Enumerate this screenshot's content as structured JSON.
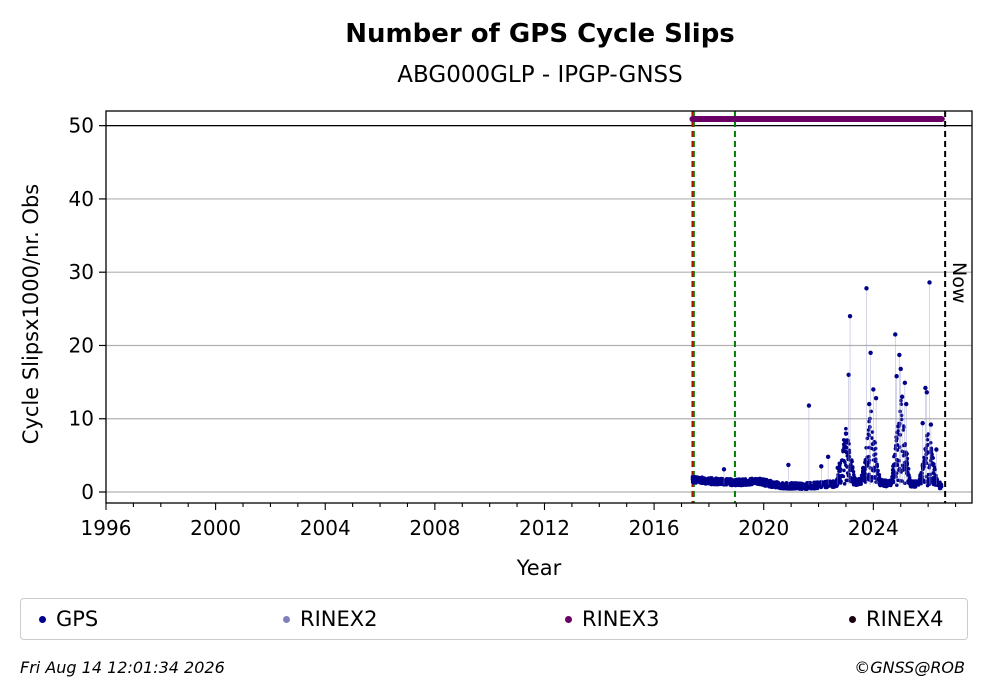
{
  "chart_data": {
    "type": "scatter",
    "title": "Number of GPS Cycle Slips",
    "subtitle": "ABG000GLP - IPGP-GNSS",
    "xlabel": "Year",
    "ylabel": "Cycle Slipsx1000/nr. Obs",
    "xlim": [
      1996,
      2027.6
    ],
    "ylim": [
      -1.5,
      52
    ],
    "x_ticks": [
      1996,
      2000,
      2004,
      2008,
      2012,
      2016,
      2020,
      2024
    ],
    "x_tick_labels": [
      "1996",
      "2000",
      "2004",
      "2008",
      "2012",
      "2016",
      "2020",
      "2024"
    ],
    "y_ticks": [
      0,
      10,
      20,
      30,
      40,
      50
    ],
    "y_tick_labels": [
      "0",
      "10",
      "20",
      "30",
      "40",
      "50"
    ],
    "grid": "y",
    "legend_placement": "bottom",
    "reference_line_y": 50,
    "vertical_lines": [
      {
        "x": 2017.4,
        "color": "#cc0000",
        "style": "dashed"
      },
      {
        "x": 2017.45,
        "color": "#008000",
        "style": "dashed"
      },
      {
        "x": 2018.95,
        "color": "#008000",
        "style": "dashed"
      },
      {
        "x": 2026.62,
        "color": "#000000",
        "style": "dashed"
      }
    ],
    "now_label": "Now",
    "rinex3_bar": {
      "x_start": 2017.4,
      "x_end": 2026.5,
      "y": 50.9,
      "color": "#6a0066"
    },
    "series": [
      {
        "name": "GPS",
        "color": "#00008b",
        "background_level": [
          [
            2017.4,
            1.7
          ],
          [
            2018.0,
            1.5
          ],
          [
            2019.0,
            1.3
          ],
          [
            2019.8,
            1.5
          ],
          [
            2020.5,
            0.9
          ],
          [
            2021.5,
            0.8
          ],
          [
            2022.5,
            1.1
          ],
          [
            2023.5,
            1.4
          ],
          [
            2024.5,
            1.2
          ],
          [
            2025.5,
            1.1
          ],
          [
            2026.5,
            0.9
          ]
        ],
        "bursts": [
          {
            "x": 2023.0,
            "peak": 8.0
          },
          {
            "x": 2023.9,
            "peak": 10.0
          },
          {
            "x": 2025.0,
            "peak": 12.0
          },
          {
            "x": 2026.0,
            "peak": 7.5
          }
        ],
        "points": [
          [
            2018.55,
            3.1
          ],
          [
            2020.9,
            3.7
          ],
          [
            2021.65,
            11.8
          ],
          [
            2022.1,
            3.5
          ],
          [
            2022.35,
            4.8
          ],
          [
            2022.7,
            3.3
          ],
          [
            2023.1,
            16.0
          ],
          [
            2023.15,
            24.0
          ],
          [
            2023.75,
            27.8
          ],
          [
            2023.9,
            19.0
          ],
          [
            2024.0,
            14.0
          ],
          [
            2024.1,
            12.8
          ],
          [
            2023.85,
            12.0
          ],
          [
            2024.8,
            21.5
          ],
          [
            2024.85,
            15.8
          ],
          [
            2024.95,
            18.7
          ],
          [
            2025.0,
            16.8
          ],
          [
            2025.05,
            13.0
          ],
          [
            2025.15,
            14.9
          ],
          [
            2025.2,
            12.0
          ],
          [
            2025.8,
            9.4
          ],
          [
            2025.9,
            14.2
          ],
          [
            2025.95,
            13.6
          ],
          [
            2026.05,
            28.6
          ],
          [
            2026.1,
            9.2
          ],
          [
            2026.3,
            5.8
          ]
        ]
      },
      {
        "name": "RINEX2",
        "color": "#8080c0",
        "points": []
      },
      {
        "name": "RINEX3",
        "color": "#6a0066",
        "points": []
      },
      {
        "name": "RINEX4",
        "color": "#1a0010",
        "points": []
      }
    ]
  },
  "footer": {
    "timestamp": "Fri Aug 14 12:01:34 2026",
    "credit": "©GNSS@ROB"
  }
}
